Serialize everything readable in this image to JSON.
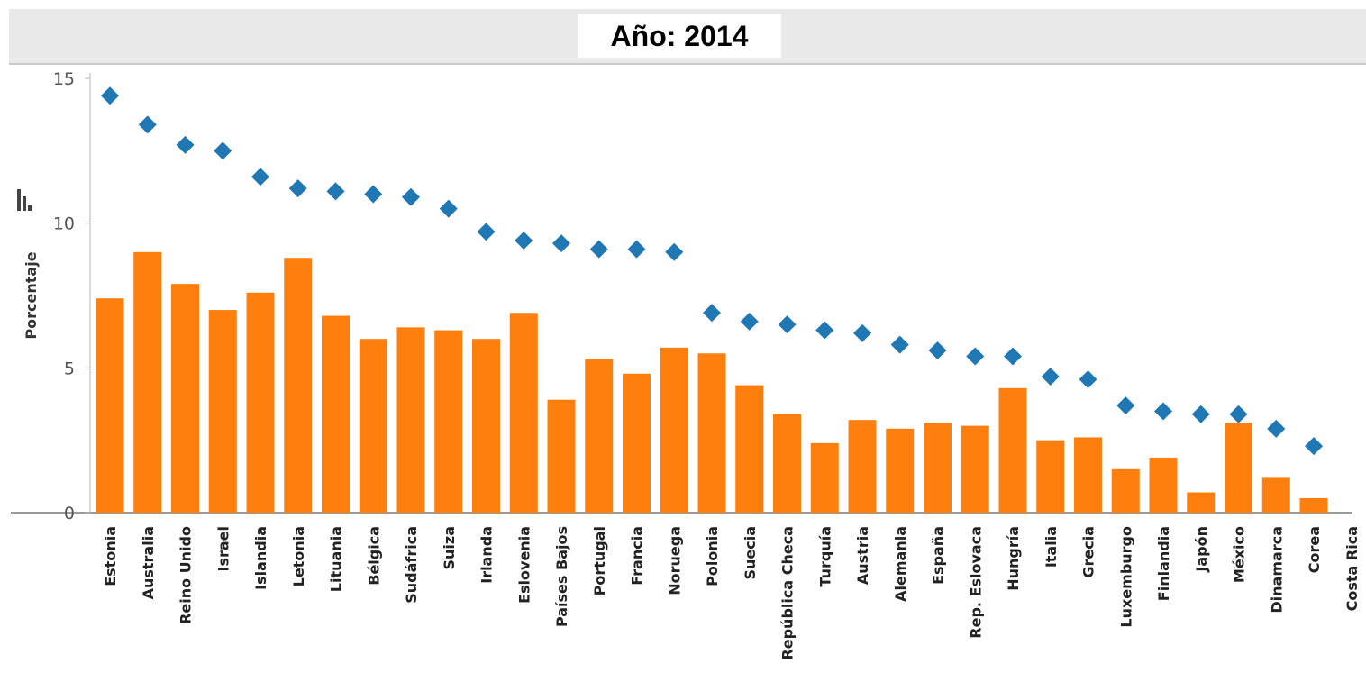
{
  "chart_data": {
    "type": "bar",
    "title": "Año: 2014",
    "ylabel": "Porcentaje",
    "xlabel": "",
    "ylim": [
      0,
      15
    ],
    "yticks": [
      0,
      5,
      10,
      15
    ],
    "grid": false,
    "categories": [
      "Estonia",
      "Australia",
      "Reino Unido",
      "Israel",
      "Islandia",
      "Letonia",
      "Lituania",
      "Bélgica",
      "Sudáfrica",
      "Suiza",
      "Irlanda",
      "Eslovenia",
      "Países Bajos",
      "Portugal",
      "Francia",
      "Noruega",
      "Polonia",
      "Suecia",
      "República Checa",
      "Turquía",
      "Austria",
      "Alemania",
      "España",
      "Rep. Eslovaca",
      "Hungría",
      "Italia",
      "Grecia",
      "Luxemburgo",
      "Finlandia",
      "Japón",
      "México",
      "Dinamarca",
      "Corea",
      "Costa Rica"
    ],
    "series": [
      {
        "type": "bar",
        "color": "#ff7f0e",
        "values": [
          7.4,
          9.0,
          7.9,
          7.0,
          7.6,
          8.8,
          6.8,
          6.0,
          6.4,
          6.3,
          6.0,
          6.9,
          3.9,
          5.3,
          4.8,
          5.7,
          5.5,
          4.4,
          3.4,
          2.4,
          3.2,
          2.9,
          3.1,
          3.0,
          4.3,
          2.5,
          2.6,
          1.5,
          1.9,
          0.7,
          3.1,
          1.2,
          0.5,
          null
        ]
      },
      {
        "type": "scatter",
        "marker": "diamond",
        "color": "#1f77b4",
        "values": [
          14.4,
          13.4,
          12.7,
          12.5,
          11.6,
          11.2,
          11.1,
          11.0,
          10.9,
          10.5,
          9.7,
          9.4,
          9.3,
          9.1,
          9.1,
          9.0,
          6.9,
          6.6,
          6.5,
          6.3,
          6.2,
          5.8,
          5.6,
          5.4,
          5.4,
          4.7,
          4.6,
          3.7,
          3.5,
          3.4,
          3.4,
          2.9,
          2.3,
          null
        ]
      }
    ]
  }
}
